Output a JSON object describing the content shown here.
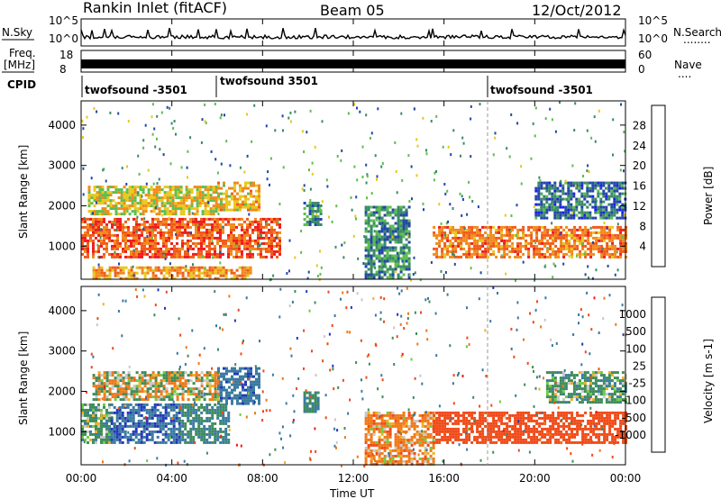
{
  "header": {
    "title": "Rankin Inlet (fitACF)",
    "beam": "Beam 05",
    "date": "12/Oct/2012"
  },
  "top_panels": {
    "nsky_label": "N.Sky",
    "nsearch_label": "N.Search",
    "nsearch_dots": "........",
    "nsky_ticks": [
      "10^5",
      "10^0"
    ],
    "freq_label_1": "Freq.",
    "freq_label_2": "[MHz]",
    "freq_ticks": [
      "18",
      "8"
    ],
    "nave_label": "Nave",
    "nave_dots": "....",
    "nave_ticks": [
      "60",
      "0"
    ],
    "cpid_label": "CPID",
    "cpid_entries": [
      "twofsound -3501",
      "twofsound 3501",
      "twofsound -3501"
    ]
  },
  "axes": {
    "ylabel": "Slant Range [km]",
    "xlabel": "Time UT",
    "y_ticks": [
      "1000",
      "2000",
      "3000",
      "4000"
    ],
    "x_ticks": [
      "00:00",
      "04:00",
      "08:00",
      "12:00",
      "16:00",
      "20:00",
      "00:00"
    ]
  },
  "colorbars": {
    "power": {
      "label": "Power [dB]",
      "ticks": [
        "4",
        "8",
        "12",
        "16",
        "20",
        "24",
        "28"
      ],
      "colors": [
        "#1c1cf0",
        "#2346a8",
        "#3a8a68",
        "#5cbd50",
        "#e8c81a",
        "#f08a1a",
        "#f05a1a",
        "#f01c1c"
      ]
    },
    "velocity": {
      "label": "Velocity [m s-1]",
      "ticks": [
        "1000",
        "500",
        "100",
        "25",
        "-25",
        "-100",
        "-500",
        "-1000"
      ],
      "colors": [
        "#2238b8",
        "#3a7aa0",
        "#3e8c5a",
        "#6ccc40",
        "#c8c8c8",
        "#f0b020",
        "#f07818",
        "#f04a18",
        "#f01c1c"
      ]
    }
  },
  "chart_data": [
    {
      "type": "heatmap",
      "name": "Power",
      "xlabel": "Time UT",
      "ylabel": "Slant Range [km]",
      "x_range_hours": [
        0,
        24
      ],
      "y_range_km": [
        180,
        4600
      ],
      "colorbar_label": "Power [dB]",
      "colorbar_range": [
        0,
        32
      ],
      "regions": [
        {
          "t_start": 0.0,
          "t_end": 8.8,
          "r_start": 700,
          "r_end": 1700,
          "level_db": 26
        },
        {
          "t_start": 0.3,
          "t_end": 6.0,
          "r_start": 1800,
          "r_end": 2500,
          "level_db": 18
        },
        {
          "t_start": 0.5,
          "t_end": 7.5,
          "r_start": 200,
          "r_end": 500,
          "level_db": 22
        },
        {
          "t_start": 6.0,
          "t_end": 7.8,
          "r_start": 1900,
          "r_end": 2600,
          "level_db": 20
        },
        {
          "t_start": 9.8,
          "t_end": 10.6,
          "r_start": 1500,
          "r_end": 2100,
          "level_db": 10
        },
        {
          "t_start": 12.5,
          "t_end": 14.5,
          "r_start": 200,
          "r_end": 2000,
          "level_db": 10
        },
        {
          "t_start": 15.5,
          "t_end": 24.0,
          "r_start": 700,
          "r_end": 1500,
          "level_db": 24
        },
        {
          "t_start": 20.0,
          "t_end": 24.0,
          "r_start": 1700,
          "r_end": 2600,
          "level_db": 8
        }
      ]
    },
    {
      "type": "heatmap",
      "name": "Velocity",
      "xlabel": "Time UT",
      "ylabel": "Slant Range [km]",
      "x_range_hours": [
        0,
        24
      ],
      "y_range_km": [
        180,
        4600
      ],
      "colorbar_label": "Velocity [m s-1]",
      "colorbar_range": [
        -1000,
        1000
      ],
      "regions": [
        {
          "t_start": 0.0,
          "t_end": 1.3,
          "r_start": 700,
          "r_end": 1700,
          "velocity": 150
        },
        {
          "t_start": 1.3,
          "t_end": 4.3,
          "r_start": 700,
          "r_end": 1700,
          "velocity": 700
        },
        {
          "t_start": 4.3,
          "t_end": 6.5,
          "r_start": 700,
          "r_end": 1700,
          "velocity": 300
        },
        {
          "t_start": 6.0,
          "t_end": 7.8,
          "r_start": 1700,
          "r_end": 2600,
          "velocity": 600
        },
        {
          "t_start": 0.5,
          "t_end": 6.0,
          "r_start": 1800,
          "r_end": 2500,
          "velocity": 0
        },
        {
          "t_start": 9.8,
          "t_end": 10.4,
          "r_start": 1500,
          "r_end": 2000,
          "velocity": 300
        },
        {
          "t_start": 12.5,
          "t_end": 15.5,
          "r_start": 200,
          "r_end": 1500,
          "velocity": -150
        },
        {
          "t_start": 15.5,
          "t_end": 24.0,
          "r_start": 700,
          "r_end": 1500,
          "velocity": -500
        },
        {
          "t_start": 20.5,
          "t_end": 24.0,
          "r_start": 1700,
          "r_end": 2500,
          "velocity": 150
        }
      ]
    }
  ]
}
